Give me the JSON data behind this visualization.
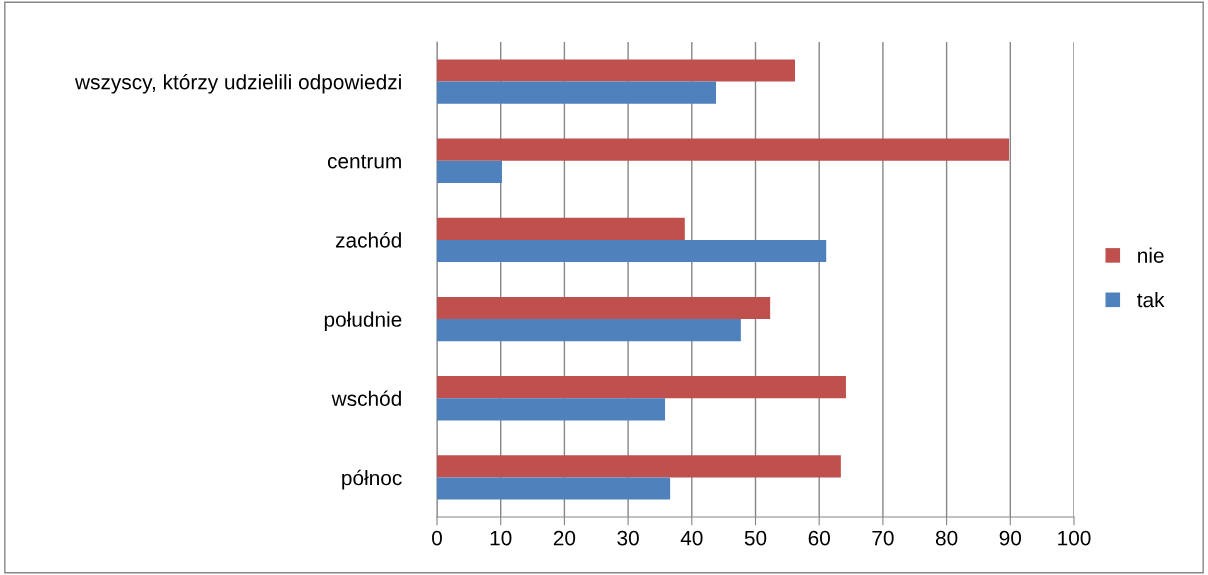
{
  "chart_data": {
    "type": "bar",
    "orientation": "horizontal",
    "categories": [
      "wszyscy, którzy udzielili odpowiedzi",
      "centrum",
      "zachód",
      "południe",
      "wschód",
      "północ"
    ],
    "series": [
      {
        "name": "nie",
        "color": "#c0504d",
        "values": [
          56.2,
          89.8,
          38.9,
          52.3,
          64.2,
          63.4
        ]
      },
      {
        "name": "tak",
        "color": "#4f81bd",
        "values": [
          43.8,
          10.2,
          61.1,
          47.7,
          35.8,
          36.6
        ]
      }
    ],
    "xlim": [
      0,
      100
    ],
    "xticks": [
      0,
      10,
      20,
      30,
      40,
      50,
      60,
      70,
      80,
      90,
      100
    ],
    "grid": "x",
    "legend": "right"
  }
}
